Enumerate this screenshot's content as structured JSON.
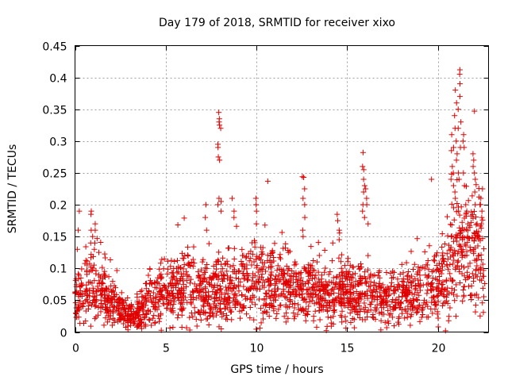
{
  "chart_data": {
    "type": "scatter",
    "title": "Day 179 of 2018, SRMTID for receiver xixo",
    "xlabel": "GPS time / hours",
    "ylabel": "SRMTID / TECUs",
    "xlim": [
      0,
      22.8
    ],
    "ylim": [
      0,
      0.45
    ],
    "xticks": [
      0,
      5,
      10,
      15,
      20
    ],
    "yticks": [
      0,
      0.05,
      0.1,
      0.15,
      0.2,
      0.25,
      0.3,
      0.35,
      0.4,
      0.45
    ],
    "xtick_labels": [
      "0",
      "5",
      "10",
      "15",
      "20"
    ],
    "ytick_labels": [
      "0",
      "0.05",
      "0.1",
      "0.15",
      "0.2",
      "0.25",
      "0.3",
      "0.35",
      "0.4",
      "0.45"
    ],
    "marker": "+",
    "color": "#e00000",
    "grid": true,
    "envelope": {
      "description": "approximate typical SRMTID level vs. hour, used with spread to represent the dense point cloud",
      "hours": [
        0,
        1,
        2,
        2.5,
        3,
        3.5,
        4,
        5,
        6,
        7,
        8,
        9,
        10,
        11,
        12,
        13,
        14,
        15,
        16,
        17,
        18,
        19,
        20,
        21,
        21.5,
        22,
        22.6
      ],
      "median": [
        0.05,
        0.07,
        0.05,
        0.035,
        0.025,
        0.03,
        0.045,
        0.06,
        0.07,
        0.06,
        0.06,
        0.075,
        0.08,
        0.075,
        0.07,
        0.065,
        0.06,
        0.065,
        0.06,
        0.05,
        0.055,
        0.06,
        0.075,
        0.12,
        0.14,
        0.13,
        0.11
      ],
      "spread": [
        0.04,
        0.06,
        0.04,
        0.03,
        0.025,
        0.03,
        0.04,
        0.055,
        0.06,
        0.06,
        0.06,
        0.06,
        0.065,
        0.06,
        0.06,
        0.055,
        0.05,
        0.055,
        0.05,
        0.04,
        0.045,
        0.05,
        0.06,
        0.1,
        0.12,
        0.11,
        0.09
      ]
    },
    "bursts": [
      {
        "x": 0.9,
        "y": [
          0.19,
          0.185,
          0.16,
          0.15,
          0.14
        ]
      },
      {
        "x": 1.1,
        "y": [
          0.17,
          0.16,
          0.14,
          0.13
        ]
      },
      {
        "x": 0.2,
        "y": [
          0.19,
          0.16,
          0.13
        ]
      },
      {
        "x": 7.2,
        "y": [
          0.2,
          0.18,
          0.16
        ]
      },
      {
        "x": 7.9,
        "y": [
          0.345,
          0.33,
          0.325,
          0.295,
          0.29,
          0.275,
          0.27,
          0.21,
          0.2
        ]
      },
      {
        "x": 8.0,
        "y": [
          0.335,
          0.32,
          0.205,
          0.19
        ]
      },
      {
        "x": 8.7,
        "y": [
          0.21,
          0.19,
          0.18
        ]
      },
      {
        "x": 10.0,
        "y": [
          0.21,
          0.2,
          0.19,
          0.17
        ]
      },
      {
        "x": 10.7,
        "y": [
          0.237
        ]
      },
      {
        "x": 12.6,
        "y": [
          0.244,
          0.243,
          0.225,
          0.21,
          0.2,
          0.18,
          0.16,
          0.15
        ]
      },
      {
        "x": 14.5,
        "y": [
          0.185,
          0.175,
          0.16,
          0.145
        ]
      },
      {
        "x": 15.9,
        "y": [
          0.282,
          0.26,
          0.255,
          0.24,
          0.23,
          0.22,
          0.2,
          0.19,
          0.18
        ]
      },
      {
        "x": 16.1,
        "y": [
          0.225,
          0.21,
          0.2,
          0.17
        ]
      },
      {
        "x": 19.7,
        "y": [
          0.24
        ]
      },
      {
        "x": 20.8,
        "y": [
          0.31,
          0.29,
          0.285,
          0.26,
          0.25,
          0.24,
          0.23
        ]
      },
      {
        "x": 21.0,
        "y": [
          0.38,
          0.36,
          0.34,
          0.32,
          0.3,
          0.28,
          0.27,
          0.22,
          0.21
        ]
      },
      {
        "x": 21.2,
        "y": [
          0.412,
          0.405,
          0.39,
          0.37,
          0.35,
          0.33,
          0.32,
          0.29,
          0.25,
          0.24
        ]
      },
      {
        "x": 21.4,
        "y": [
          0.31,
          0.3,
          0.29,
          0.25,
          0.23
        ]
      },
      {
        "x": 22.0,
        "y": [
          0.28,
          0.27,
          0.26,
          0.25,
          0.24,
          0.22,
          0.2
        ]
      },
      {
        "x": 22.4,
        "y": [
          0.225,
          0.21,
          0.2,
          0.19,
          0.18,
          0.17
        ]
      },
      {
        "x": 21.6,
        "y": [
          0.2,
          0.19,
          0.17,
          0.15
        ]
      }
    ],
    "point_count": 2200
  }
}
